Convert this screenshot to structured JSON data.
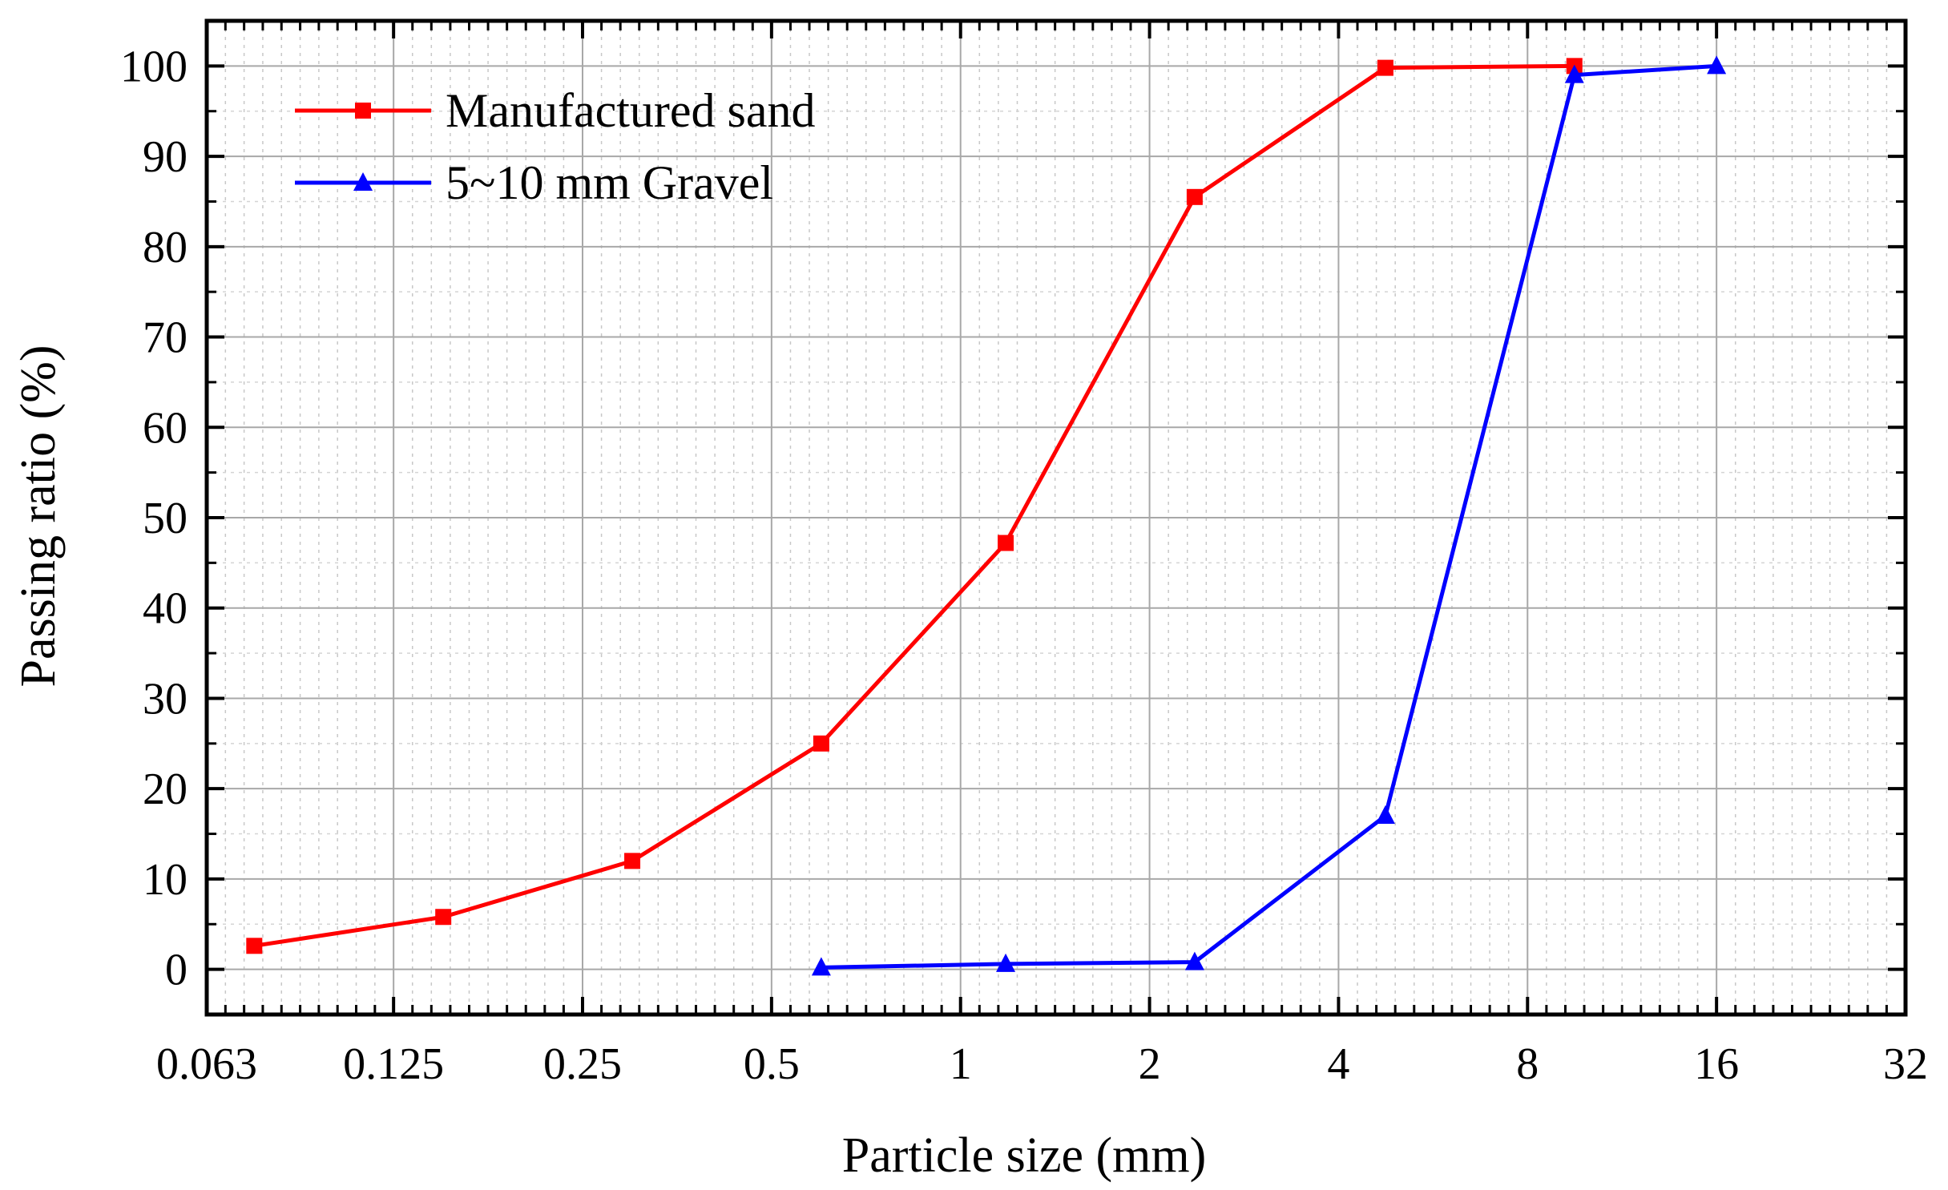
{
  "chart_data": {
    "type": "line",
    "xlabel": "Particle size (mm)",
    "ylabel": "Passing ratio (%)",
    "x_scale": "log2",
    "xlim": [
      0.063,
      32
    ],
    "ylim": [
      -5,
      105
    ],
    "x_ticks": [
      {
        "value": 0.063,
        "label": "0.063"
      },
      {
        "value": 0.125,
        "label": "0.125"
      },
      {
        "value": 0.25,
        "label": "0.25"
      },
      {
        "value": 0.5,
        "label": "0.5"
      },
      {
        "value": 1,
        "label": "1"
      },
      {
        "value": 2,
        "label": "2"
      },
      {
        "value": 4,
        "label": "4"
      },
      {
        "value": 8,
        "label": "8"
      },
      {
        "value": 16,
        "label": "16"
      },
      {
        "value": 32,
        "label": "32"
      }
    ],
    "y_ticks": [
      {
        "value": 0,
        "label": "0"
      },
      {
        "value": 10,
        "label": "10"
      },
      {
        "value": 20,
        "label": "20"
      },
      {
        "value": 30,
        "label": "30"
      },
      {
        "value": 40,
        "label": "40"
      },
      {
        "value": 50,
        "label": "50"
      },
      {
        "value": 60,
        "label": "60"
      },
      {
        "value": 70,
        "label": "70"
      },
      {
        "value": 80,
        "label": "80"
      },
      {
        "value": 90,
        "label": "90"
      },
      {
        "value": 100,
        "label": "100"
      }
    ],
    "grid": true,
    "legend_position": "top-left",
    "series": [
      {
        "name": "Manufactured sand",
        "color": "#ff0000",
        "marker": "square",
        "x": [
          0.075,
          0.15,
          0.3,
          0.6,
          1.18,
          2.36,
          4.75,
          9.5
        ],
        "y": [
          2.6,
          5.8,
          12.0,
          25.0,
          47.2,
          85.5,
          99.8,
          100.0
        ]
      },
      {
        "name": "5~10 mm Gravel",
        "color": "#0000ff",
        "marker": "triangle",
        "x": [
          0.6,
          1.18,
          2.36,
          4.75,
          9.5,
          16
        ],
        "y": [
          0.2,
          0.6,
          0.8,
          17.0,
          99.0,
          100.0
        ]
      }
    ]
  }
}
